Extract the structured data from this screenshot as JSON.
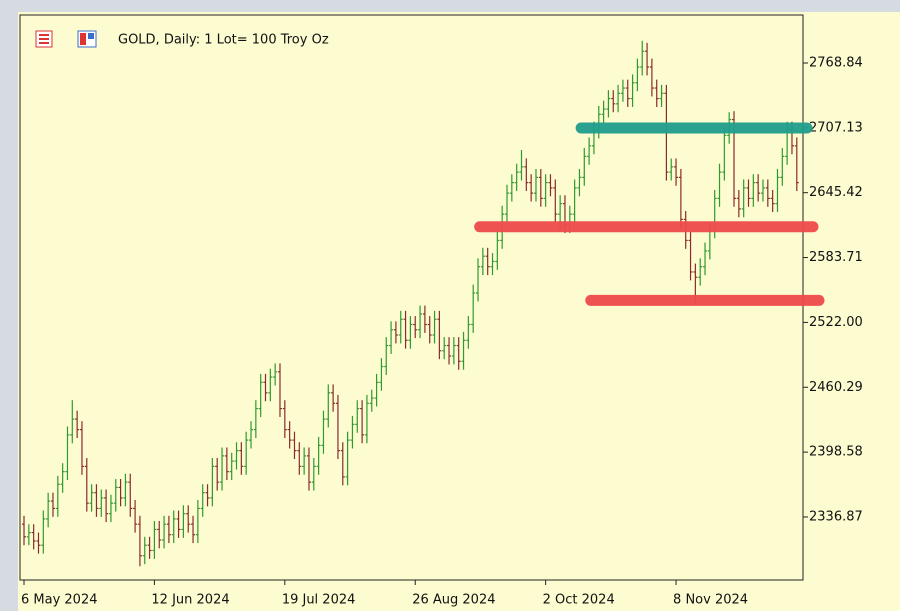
{
  "chart_data": {
    "type": "ohlc",
    "title": "GOLD, Daily:  1 Lot= 100 Troy Oz",
    "categories": [
      "6 May 2024",
      null,
      null,
      null,
      null,
      null,
      null,
      null,
      null,
      null,
      null,
      null,
      null,
      null,
      null,
      null,
      null,
      null,
      null,
      null,
      null,
      null,
      null,
      null,
      null,
      null,
      null,
      "12 Jun 2024",
      null,
      null,
      null,
      null,
      null,
      null,
      null,
      null,
      null,
      null,
      null,
      null,
      null,
      null,
      null,
      null,
      null,
      null,
      null,
      null,
      null,
      null,
      null,
      null,
      null,
      null,
      "19 Jul 2024",
      null,
      null,
      null,
      null,
      null,
      null,
      null,
      null,
      null,
      null,
      null,
      null,
      null,
      null,
      null,
      null,
      null,
      null,
      null,
      null,
      null,
      null,
      null,
      null,
      null,
      null,
      "26 Aug 2024",
      null,
      null,
      null,
      null,
      null,
      null,
      null,
      null,
      null,
      null,
      null,
      null,
      null,
      null,
      null,
      null,
      null,
      null,
      null,
      null,
      null,
      null,
      null,
      null,
      null,
      null,
      "2 Oct 2024",
      null,
      null,
      null,
      null,
      null,
      null,
      null,
      null,
      null,
      null,
      null,
      null,
      null,
      null,
      null,
      null,
      null,
      null,
      null,
      null,
      null,
      null,
      null,
      null,
      null,
      null,
      "8 Nov 2024",
      null,
      null,
      null,
      null,
      null,
      null,
      null,
      null,
      null,
      null,
      null,
      null,
      null,
      null,
      null,
      null,
      null,
      null,
      null,
      null,
      null,
      null,
      null,
      null,
      null
    ],
    "open": [
      2330,
      2318,
      2322,
      2314,
      2310,
      2335,
      2352,
      2345,
      2368,
      2380,
      2415,
      2430,
      2420,
      2385,
      2350,
      2360,
      2345,
      2355,
      2340,
      2350,
      2365,
      2355,
      2370,
      2345,
      2330,
      2300,
      2310,
      2305,
      2325,
      2315,
      2330,
      2320,
      2335,
      2325,
      2340,
      2330,
      2320,
      2345,
      2360,
      2355,
      2385,
      2370,
      2395,
      2380,
      2390,
      2400,
      2385,
      2410,
      2420,
      2440,
      2465,
      2455,
      2470,
      2475,
      2440,
      2420,
      2410,
      2400,
      2385,
      2395,
      2370,
      2385,
      2405,
      2430,
      2455,
      2445,
      2400,
      2375,
      2410,
      2425,
      2440,
      2415,
      2445,
      2450,
      2465,
      2480,
      2500,
      2515,
      2510,
      2525,
      2505,
      2520,
      2515,
      2530,
      2520,
      2510,
      2525,
      2495,
      2500,
      2490,
      2500,
      2485,
      2505,
      2520,
      2550,
      2575,
      2585,
      2575,
      2580,
      2600,
      2625,
      2645,
      2655,
      2665,
      2670,
      2655,
      2645,
      2660,
      2640,
      2655,
      2650,
      2625,
      2635,
      2615,
      2625,
      2650,
      2660,
      2680,
      2690,
      2705,
      2720,
      2725,
      2735,
      2730,
      2740,
      2745,
      2735,
      2750,
      2765,
      2780,
      2765,
      2745,
      2735,
      2740,
      2665,
      2670,
      2660,
      2620,
      2600,
      2570,
      2565,
      2575,
      2590,
      2610,
      2640,
      2665,
      2700,
      2715,
      2640,
      2630,
      2650,
      2640,
      2655,
      2645,
      2650,
      2640,
      2635,
      2660,
      2680,
      2705,
      2690
    ],
    "high": [
      2338,
      2330,
      2330,
      2322,
      2343,
      2360,
      2360,
      2376,
      2388,
      2423,
      2448,
      2438,
      2428,
      2393,
      2368,
      2368,
      2363,
      2363,
      2358,
      2373,
      2373,
      2378,
      2378,
      2353,
      2338,
      2318,
      2318,
      2333,
      2333,
      2338,
      2338,
      2343,
      2343,
      2348,
      2348,
      2338,
      2353,
      2368,
      2368,
      2393,
      2393,
      2403,
      2403,
      2398,
      2408,
      2408,
      2418,
      2428,
      2448,
      2473,
      2473,
      2478,
      2483,
      2483,
      2448,
      2428,
      2418,
      2408,
      2403,
      2403,
      2393,
      2413,
      2438,
      2463,
      2463,
      2453,
      2408,
      2418,
      2433,
      2448,
      2448,
      2453,
      2458,
      2473,
      2488,
      2508,
      2523,
      2523,
      2533,
      2533,
      2528,
      2528,
      2538,
      2538,
      2528,
      2533,
      2533,
      2508,
      2508,
      2508,
      2508,
      2513,
      2528,
      2558,
      2583,
      2593,
      2593,
      2588,
      2608,
      2633,
      2653,
      2663,
      2673,
      2686,
      2678,
      2663,
      2668,
      2668,
      2663,
      2663,
      2658,
      2643,
      2643,
      2633,
      2658,
      2668,
      2688,
      2698,
      2713,
      2728,
      2733,
      2743,
      2743,
      2748,
      2753,
      2753,
      2758,
      2773,
      2790,
      2788,
      2773,
      2753,
      2748,
      2748,
      2678,
      2678,
      2668,
      2628,
      2608,
      2578,
      2583,
      2598,
      2618,
      2648,
      2673,
      2708,
      2722,
      2723,
      2648,
      2658,
      2658,
      2663,
      2663,
      2658,
      2658,
      2648,
      2668,
      2688,
      2713,
      2713,
      2698
    ],
    "low": [
      2310,
      2310,
      2306,
      2302,
      2302,
      2327,
      2337,
      2337,
      2360,
      2372,
      2407,
      2412,
      2377,
      2342,
      2342,
      2337,
      2337,
      2332,
      2332,
      2342,
      2347,
      2347,
      2337,
      2322,
      2290,
      2292,
      2297,
      2297,
      2307,
      2307,
      2312,
      2312,
      2317,
      2317,
      2322,
      2312,
      2312,
      2337,
      2347,
      2347,
      2362,
      2362,
      2372,
      2372,
      2382,
      2377,
      2377,
      2402,
      2412,
      2432,
      2447,
      2447,
      2462,
      2432,
      2412,
      2402,
      2392,
      2377,
      2377,
      2362,
      2362,
      2377,
      2397,
      2422,
      2437,
      2392,
      2367,
      2367,
      2402,
      2417,
      2407,
      2407,
      2437,
      2442,
      2457,
      2472,
      2492,
      2502,
      2502,
      2497,
      2497,
      2507,
      2507,
      2512,
      2502,
      2502,
      2487,
      2487,
      2482,
      2482,
      2477,
      2477,
      2497,
      2512,
      2542,
      2567,
      2567,
      2567,
      2572,
      2592,
      2617,
      2637,
      2647,
      2657,
      2647,
      2637,
      2637,
      2632,
      2632,
      2642,
      2617,
      2610,
      2607,
      2607,
      2617,
      2642,
      2652,
      2672,
      2682,
      2697,
      2712,
      2717,
      2722,
      2722,
      2732,
      2727,
      2727,
      2742,
      2757,
      2757,
      2737,
      2727,
      2727,
      2657,
      2657,
      2652,
      2612,
      2592,
      2562,
      2540,
      2557,
      2567,
      2582,
      2602,
      2632,
      2657,
      2692,
      2632,
      2622,
      2622,
      2632,
      2632,
      2637,
      2637,
      2632,
      2627,
      2627,
      2652,
      2672,
      2682,
      2647
    ],
    "close": [
      2318,
      2322,
      2314,
      2310,
      2335,
      2352,
      2345,
      2368,
      2380,
      2415,
      2430,
      2420,
      2385,
      2350,
      2360,
      2345,
      2355,
      2340,
      2350,
      2365,
      2355,
      2370,
      2345,
      2330,
      2300,
      2310,
      2305,
      2325,
      2315,
      2330,
      2320,
      2335,
      2325,
      2340,
      2330,
      2320,
      2345,
      2360,
      2355,
      2385,
      2370,
      2395,
      2380,
      2390,
      2400,
      2385,
      2410,
      2420,
      2440,
      2465,
      2455,
      2470,
      2475,
      2440,
      2420,
      2410,
      2400,
      2385,
      2395,
      2370,
      2385,
      2405,
      2430,
      2455,
      2445,
      2400,
      2375,
      2410,
      2425,
      2440,
      2415,
      2445,
      2450,
      2465,
      2480,
      2500,
      2515,
      2510,
      2525,
      2505,
      2520,
      2515,
      2530,
      2520,
      2510,
      2525,
      2495,
      2500,
      2490,
      2500,
      2485,
      2505,
      2520,
      2550,
      2575,
      2585,
      2575,
      2580,
      2600,
      2625,
      2645,
      2655,
      2665,
      2670,
      2655,
      2645,
      2660,
      2640,
      2655,
      2650,
      2625,
      2635,
      2615,
      2625,
      2650,
      2660,
      2680,
      2690,
      2705,
      2720,
      2725,
      2735,
      2730,
      2740,
      2745,
      2735,
      2750,
      2765,
      2780,
      2765,
      2745,
      2735,
      2740,
      2665,
      2670,
      2660,
      2620,
      2600,
      2570,
      2565,
      2575,
      2590,
      2610,
      2640,
      2665,
      2700,
      2715,
      2640,
      2630,
      2650,
      2640,
      2655,
      2645,
      2650,
      2640,
      2635,
      2660,
      2680,
      2705,
      2690,
      2655
    ],
    "up_color": "#2f9a2f",
    "down_color": "#8b2b2b",
    "ylim": [
      2276.9,
      2814.5
    ],
    "yticks": [
      2336.87,
      2398.58,
      2460.29,
      {
        "value": 2522,
        "label": "2522.00"
      },
      2583.71,
      2645.42,
      2707.13,
      2768.84
    ],
    "hlines": [
      {
        "value": 2707,
        "from": 117,
        "color": "#1f9e8c"
      },
      {
        "value": 2613,
        "from": 96,
        "color": "#ee4b4b"
      },
      {
        "value": 2543,
        "from": 119,
        "color": "#ee4b4b"
      }
    ]
  }
}
